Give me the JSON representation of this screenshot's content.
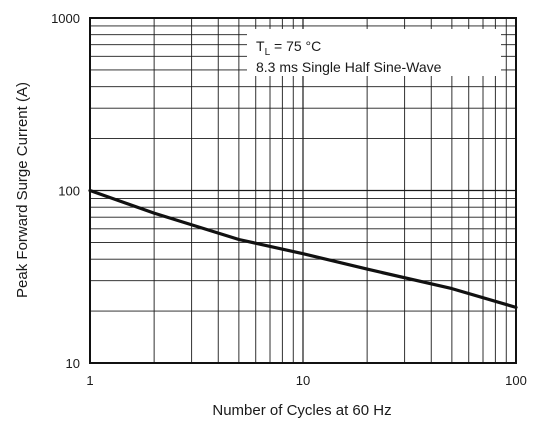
{
  "chart_data": {
    "type": "line",
    "xlabel": "Number of Cycles at 60 Hz",
    "ylabel": "Peak Forward Surge Current (A)",
    "xscale": "log",
    "yscale": "log",
    "xlim": [
      1,
      100
    ],
    "ylim": [
      10,
      1000
    ],
    "x_tick_labels": [
      "1",
      "10",
      "100"
    ],
    "y_tick_labels": [
      "10",
      "100",
      "1000"
    ],
    "grid": true,
    "series": [
      {
        "x": [
          1,
          2,
          5,
          10,
          20,
          50,
          100
        ],
        "y": [
          100,
          74,
          52,
          43,
          35,
          27,
          21
        ]
      }
    ],
    "annotations": {
      "line1_main": "T",
      "line1_sub": "L",
      "line1_rest": " = 75 °C",
      "line2": "8.3 ms Single Half Sine-Wave"
    },
    "colors": {
      "line": "#111111",
      "grid": "#1a1a1a",
      "frame": "#111111"
    }
  }
}
